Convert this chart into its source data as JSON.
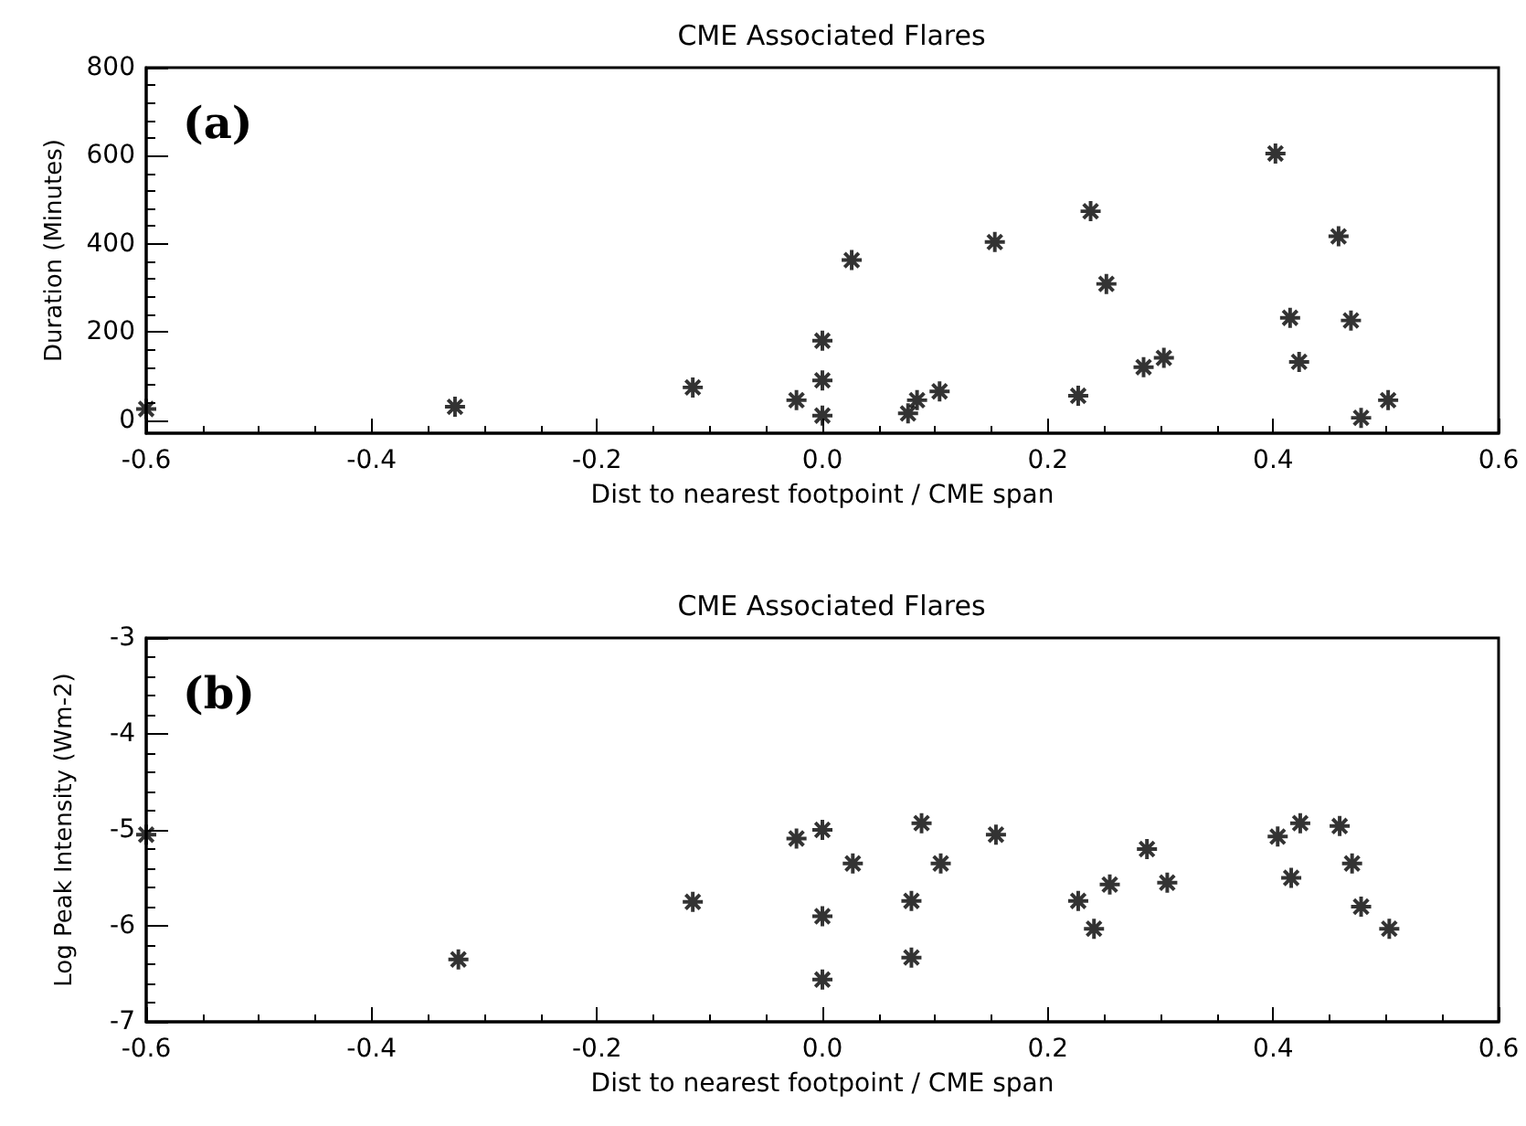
{
  "chart_data": [
    {
      "type": "scatter",
      "title": "CME Associated Flares",
      "xlabel": "Dist to nearest footpoint / CME span",
      "ylabel": "Duration (Minutes)",
      "annotations": [
        "(a)"
      ],
      "marker": "star",
      "grid": false,
      "xlim": [
        -0.6,
        0.6
      ],
      "xticks": [
        -0.6,
        -0.4,
        -0.2,
        {
          "value": 0,
          "label": "0.0"
        },
        0.2,
        0.4,
        0.6
      ],
      "ylim": [
        -30,
        800
      ],
      "yticks": [
        0,
        200,
        400,
        600,
        800
      ],
      "series": [
        {
          "color": "#000000",
          "x": [
            -0.6,
            -0.326,
            -0.115,
            -0.023,
            0.0,
            0.0,
            0.0,
            0.026,
            0.076,
            0.084,
            0.104,
            0.153,
            0.227,
            0.238,
            0.252,
            0.285,
            0.303,
            0.402,
            0.415,
            0.423,
            0.458,
            0.469,
            0.478,
            0.502
          ],
          "values": [
            25,
            30,
            74,
            45,
            180,
            90,
            10,
            363,
            15,
            45,
            65,
            404,
            55,
            474,
            309,
            120,
            141,
            605,
            232,
            132,
            417,
            226,
            5,
            45
          ]
        }
      ]
    },
    {
      "type": "scatter",
      "title": "CME Associated Flares",
      "xlabel": "Dist to nearest footpoint / CME span",
      "ylabel": "Log Peak Intensity (Wm-2)",
      "annotations": [
        "(b)"
      ],
      "marker": "star",
      "grid": false,
      "xlim": [
        -0.6,
        0.6
      ],
      "xticks": [
        -0.6,
        -0.4,
        -0.2,
        {
          "value": 0,
          "label": "0.0"
        },
        0.2,
        0.4,
        0.6
      ],
      "ylim": [
        -7,
        -3
      ],
      "yticks": [
        -7,
        -6,
        -5,
        -4,
        -3
      ],
      "series": [
        {
          "color": "#000000",
          "x": [
            -0.6,
            -0.323,
            -0.115,
            -0.023,
            0.0,
            0.0,
            0.0,
            0.027,
            0.079,
            0.079,
            0.088,
            0.105,
            0.154,
            0.227,
            0.241,
            0.255,
            0.288,
            0.306,
            0.404,
            0.416,
            0.424,
            0.459,
            0.47,
            0.478,
            0.503
          ],
          "values": [
            -5.05,
            -6.35,
            -5.75,
            -5.09,
            -5.0,
            -5.9,
            -6.56,
            -5.35,
            -5.74,
            -6.33,
            -4.93,
            -5.35,
            -5.05,
            -5.74,
            -6.03,
            -5.57,
            -5.2,
            -5.55,
            -5.07,
            -5.5,
            -4.93,
            -4.96,
            -5.35,
            -5.8,
            -6.03
          ]
        }
      ]
    }
  ]
}
